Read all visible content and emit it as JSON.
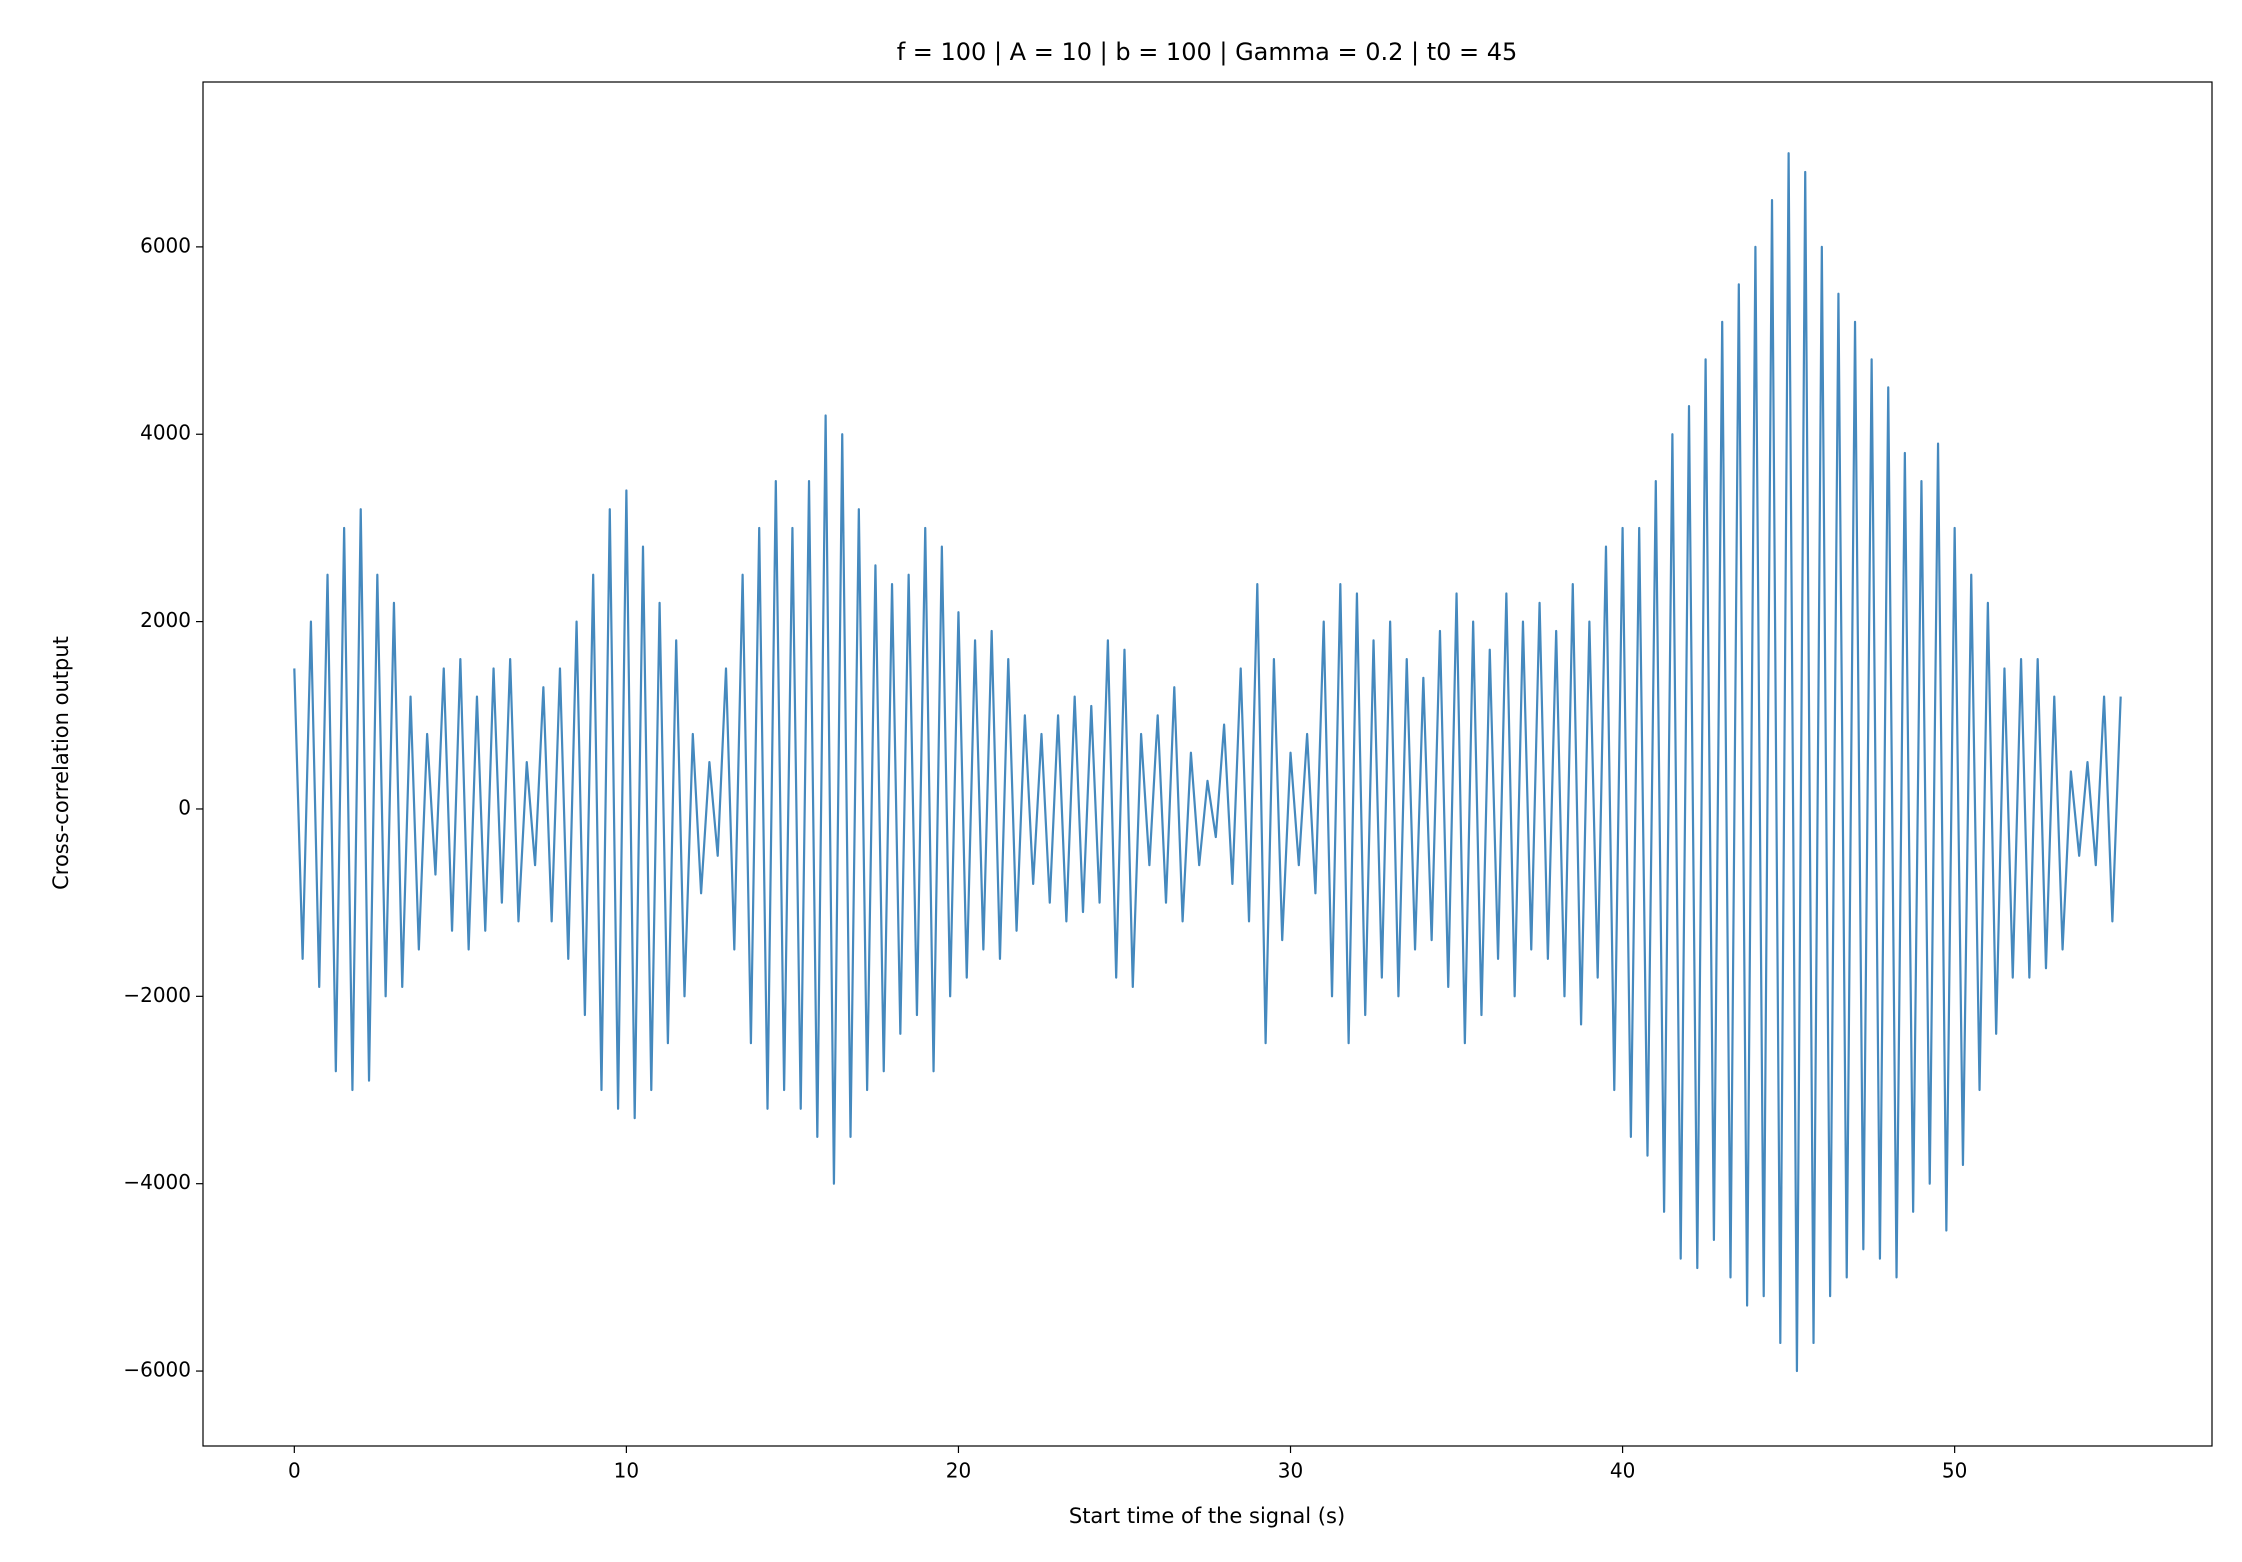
{
  "chart_data": {
    "type": "line",
    "title": "f = 100 | A = 10 | b = 100 | Gamma = 0.2 | t0 = 45",
    "x_label": "Start time of the signal (s)",
    "y_label": "Cross-correlation output",
    "color": "#4589be",
    "xlim": [
      -2.75,
      57.75
    ],
    "ylim": [
      -6800,
      7760
    ],
    "xticks": [
      0,
      10,
      20,
      30,
      40,
      50
    ],
    "yticks": [
      {
        "value": -6000,
        "label": "−6000"
      },
      {
        "value": -4000,
        "label": "−4000"
      },
      {
        "value": -2000,
        "label": "−2000"
      },
      0,
      2000,
      4000,
      6000
    ],
    "x": [
      0,
      0.25,
      0.5,
      0.75,
      1,
      1.25,
      1.5,
      1.75,
      2,
      2.25,
      2.5,
      2.75,
      3,
      3.25,
      3.5,
      3.75,
      4,
      4.25,
      4.5,
      4.75,
      5,
      5.25,
      5.5,
      5.75,
      6,
      6.25,
      6.5,
      6.75,
      7,
      7.25,
      7.5,
      7.75,
      8,
      8.25,
      8.5,
      8.75,
      9,
      9.25,
      9.5,
      9.75,
      10,
      10.25,
      10.5,
      10.75,
      11,
      11.25,
      11.5,
      11.75,
      12,
      12.25,
      12.5,
      12.75,
      13,
      13.25,
      13.5,
      13.75,
      14,
      14.25,
      14.5,
      14.75,
      15,
      15.25,
      15.5,
      15.75,
      16,
      16.25,
      16.5,
      16.75,
      17,
      17.25,
      17.5,
      17.75,
      18,
      18.25,
      18.5,
      18.75,
      19,
      19.25,
      19.5,
      19.75,
      20,
      20.25,
      20.5,
      20.75,
      21,
      21.25,
      21.5,
      21.75,
      22,
      22.25,
      22.5,
      22.75,
      23,
      23.25,
      23.5,
      23.75,
      24,
      24.25,
      24.5,
      24.75,
      25,
      25.25,
      25.5,
      25.75,
      26,
      26.25,
      26.5,
      26.75,
      27,
      27.25,
      27.5,
      27.75,
      28,
      28.25,
      28.5,
      28.75,
      29,
      29.25,
      29.5,
      29.75,
      30,
      30.25,
      30.5,
      30.75,
      31,
      31.25,
      31.5,
      31.75,
      32,
      32.25,
      32.5,
      32.75,
      33,
      33.25,
      33.5,
      33.75,
      34,
      34.25,
      34.5,
      34.75,
      35,
      35.25,
      35.5,
      35.75,
      36,
      36.25,
      36.5,
      36.75,
      37,
      37.25,
      37.5,
      37.75,
      38,
      38.25,
      38.5,
      38.75,
      39,
      39.25,
      39.5,
      39.75,
      40,
      40.25,
      40.5,
      40.75,
      41,
      41.25,
      41.5,
      41.75,
      42,
      42.25,
      42.5,
      42.75,
      43,
      43.25,
      43.5,
      43.75,
      44,
      44.25,
      44.5,
      44.75,
      45,
      45.25,
      45.5,
      45.75,
      46,
      46.25,
      46.5,
      46.75,
      47,
      47.25,
      47.5,
      47.75,
      48,
      48.25,
      48.5,
      48.75,
      49,
      49.25,
      49.5,
      49.75,
      50,
      50.25,
      50.5,
      50.75,
      51,
      51.25,
      51.5,
      51.75,
      52,
      52.25,
      52.5,
      52.75,
      53,
      53.25,
      53.5,
      53.75,
      54,
      54.25,
      54.5,
      54.75,
      55
    ],
    "values": [
      1500,
      -1600,
      2000,
      -1900,
      2500,
      -2800,
      3000,
      -3000,
      3200,
      -2900,
      2500,
      -2000,
      2200,
      -1900,
      1200,
      -1500,
      800,
      -700,
      1500,
      -1300,
      1600,
      -1500,
      1200,
      -1300,
      1500,
      -1000,
      1600,
      -1200,
      500,
      -600,
      1300,
      -1200,
      1500,
      -1600,
      2000,
      -2200,
      2500,
      -3000,
      3200,
      -3200,
      3400,
      -3300,
      2800,
      -3000,
      2200,
      -2500,
      1800,
      -2000,
      800,
      -900,
      500,
      -500,
      1500,
      -1500,
      2500,
      -2500,
      3000,
      -3200,
      3500,
      -3000,
      3000,
      -3200,
      3500,
      -3500,
      4200,
      -4000,
      4000,
      -3500,
      3200,
      -3000,
      2600,
      -2800,
      2400,
      -2400,
      2500,
      -2200,
      3000,
      -2800,
      2800,
      -2000,
      2100,
      -1800,
      1800,
      -1500,
      1900,
      -1600,
      1600,
      -1300,
      1000,
      -800,
      800,
      -1000,
      1000,
      -1200,
      1200,
      -1100,
      1100,
      -1000,
      1800,
      -1800,
      1700,
      -1900,
      800,
      -600,
      1000,
      -1000,
      1300,
      -1200,
      600,
      -600,
      300,
      -300,
      900,
      -800,
      1500,
      -1200,
      2400,
      -2500,
      1600,
      -1400,
      600,
      -600,
      800,
      -900,
      2000,
      -2000,
      2400,
      -2500,
      2300,
      -2200,
      1800,
      -1800,
      2000,
      -2000,
      1600,
      -1500,
      1400,
      -1400,
      1900,
      -1900,
      2300,
      -2500,
      2000,
      -2200,
      1700,
      -1600,
      2300,
      -2000,
      2000,
      -1500,
      2200,
      -1600,
      1900,
      -2000,
      2400,
      -2300,
      2000,
      -1800,
      2800,
      -3000,
      3000,
      -3500,
      3000,
      -3700,
      3500,
      -4300,
      4000,
      -4800,
      4300,
      -4900,
      4800,
      -4600,
      5200,
      -5000,
      5600,
      -5300,
      6000,
      -5200,
      6500,
      -5700,
      7000,
      -6000,
      6800,
      -5700,
      6000,
      -5200,
      5500,
      -5000,
      5200,
      -4700,
      4800,
      -4800,
      4500,
      -5000,
      3800,
      -4300,
      3500,
      -4000,
      3900,
      -4500,
      3000,
      -3800,
      2500,
      -3000,
      2200,
      -2400,
      1500,
      -1800,
      1600,
      -1800,
      1600,
      -1700,
      1200,
      -1500,
      400,
      -500,
      500,
      -600,
      1200,
      -1200,
      1200
    ]
  }
}
